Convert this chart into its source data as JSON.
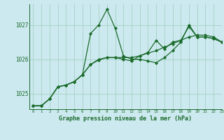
{
  "title": "Graphe pression niveau de la mer (hPa)",
  "background_color": "#cde9f0",
  "grid_color": "#a8d5c8",
  "line_color": "#1a6b2a",
  "marker_color": "#1a6b2a",
  "xlim": [
    -0.5,
    23
  ],
  "ylim": [
    1024.55,
    1027.6
  ],
  "yticks": [
    1025,
    1026,
    1027
  ],
  "xticks": [
    0,
    1,
    2,
    3,
    4,
    5,
    6,
    7,
    8,
    9,
    10,
    11,
    12,
    13,
    14,
    15,
    16,
    17,
    18,
    19,
    20,
    21,
    22,
    23
  ],
  "series": [
    [
      1024.65,
      1024.65,
      1024.85,
      1025.2,
      1025.25,
      1025.35,
      1025.55,
      1026.75,
      1027.0,
      1027.45,
      1026.9,
      1026.1,
      1026.0,
      1026.0,
      1025.95,
      1025.9,
      1026.05,
      1026.25,
      1026.5,
      1027.0,
      1026.65,
      1026.65,
      1026.6,
      1026.5
    ],
    [
      1024.65,
      1024.65,
      1024.85,
      1025.2,
      1025.25,
      1025.35,
      1025.55,
      1025.85,
      1026.0,
      1026.05,
      1026.05,
      1026.0,
      1025.95,
      1026.1,
      1026.2,
      1026.55,
      1026.3,
      1026.5,
      1026.55,
      1026.95,
      1026.65,
      1026.65,
      1026.6,
      1026.5
    ],
    [
      1024.65,
      1024.65,
      1024.85,
      1025.2,
      1025.25,
      1025.35,
      1025.55,
      1025.85,
      1025.98,
      1026.05,
      1026.05,
      1026.05,
      1026.05,
      1026.1,
      1026.18,
      1026.25,
      1026.35,
      1026.45,
      1026.55,
      1026.65,
      1026.7,
      1026.7,
      1026.65,
      1026.5
    ]
  ]
}
